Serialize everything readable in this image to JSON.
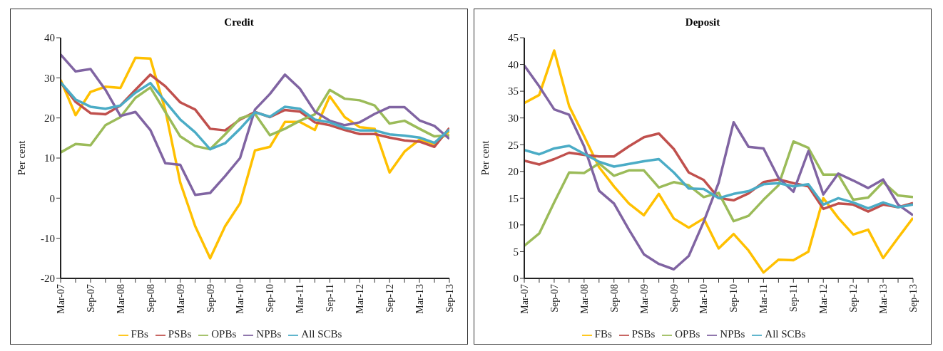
{
  "chart_data": [
    {
      "type": "line",
      "title": "Credit",
      "ylabel": "Per cent",
      "categories": [
        "Mar-07",
        null,
        "Sep-07",
        null,
        "Mar-08",
        null,
        "Sep-08",
        null,
        "Mar-09",
        null,
        "Sep-09",
        null,
        "Mar-10",
        null,
        "Sep-10",
        null,
        "Mar-11",
        null,
        "Sep-11",
        null,
        "Mar-12",
        null,
        "Sep-12",
        null,
        "Mar-13",
        null,
        "Sep-13"
      ],
      "series": [
        {
          "name": "FBs",
          "color": "#ffc000",
          "values": [
            29.5,
            20.7,
            26.5,
            27.8,
            27.5,
            35,
            34.8,
            22,
            3.9,
            -7,
            -15,
            -7,
            -1.3,
            11.9,
            12.8,
            19,
            19,
            17,
            25.4,
            20.2,
            17.7,
            17.3,
            6.4,
            11.6,
            14.6,
            13.5,
            16.7
          ]
        },
        {
          "name": "PSBs",
          "color": "#c0504d",
          "values": [
            28.9,
            24,
            21.2,
            20.9,
            23.1,
            27,
            30.8,
            27.9,
            23.9,
            22.1,
            17.3,
            16.9,
            19.6,
            21.5,
            20.2,
            22,
            21.6,
            18.9,
            18.2,
            17,
            16,
            16,
            15.1,
            14.4,
            14.1,
            12.8,
            17.5
          ]
        },
        {
          "name": "OPBs",
          "color": "#9bbb59",
          "values": [
            11.4,
            13.5,
            13.2,
            18.2,
            20.2,
            25,
            27.6,
            21.5,
            15.4,
            13,
            12.2,
            15.9,
            19.9,
            21,
            15.7,
            17.3,
            19.3,
            20.9,
            27,
            24.8,
            24.4,
            23.1,
            18.6,
            19.3,
            17.3,
            15.4,
            15.7
          ]
        },
        {
          "name": "NPBs",
          "color": "#8064a2",
          "values": [
            35.8,
            31.6,
            32.2,
            27,
            20.5,
            21.5,
            17,
            8.7,
            8.3,
            0.8,
            1.3,
            5.5,
            10,
            22.1,
            26,
            30.8,
            27.3,
            21.6,
            19.3,
            18.2,
            18.9,
            21,
            22.7,
            22.7,
            19.4,
            18,
            14.8
          ]
        },
        {
          "name": "All SCBs",
          "color": "#4bacc6",
          "values": [
            28.9,
            24.6,
            22.8,
            22.3,
            23.1,
            26.3,
            28.7,
            24.1,
            19.6,
            16.4,
            12.2,
            13.7,
            17.3,
            21.4,
            20.3,
            22.8,
            22.3,
            19.6,
            18.9,
            17.5,
            16.9,
            16.9,
            15.9,
            15.6,
            15.1,
            13.8,
            17.1
          ]
        }
      ],
      "ylim": [
        -20,
        40
      ],
      "yticks": [
        -20,
        -10,
        0,
        10,
        20,
        30,
        40
      ],
      "grid": false,
      "legend": "bottom",
      "marker": "none",
      "line_style": "solid"
    },
    {
      "type": "line",
      "title": "Deposit",
      "ylabel": "Per cent",
      "categories": [
        "Mar-07",
        null,
        "Sep-07",
        null,
        "Mar-08",
        null,
        "Sep-08",
        null,
        "Mar-09",
        null,
        "Sep-09",
        null,
        "Mar-10",
        null,
        "Sep-10",
        null,
        "Mar-11",
        null,
        "Sep-11",
        null,
        "Mar-12",
        null,
        "Sep-12",
        null,
        "Mar-13",
        null,
        "Sep-13"
      ],
      "series": [
        {
          "name": "FBs",
          "color": "#ffc000",
          "values": [
            32.8,
            34.3,
            42.6,
            32.2,
            26.6,
            20.8,
            17.2,
            14,
            11.8,
            15.8,
            11.2,
            9.5,
            11.2,
            5.6,
            8.3,
            5.2,
            1.1,
            3.5,
            3.4,
            5,
            15,
            11.3,
            8.2,
            9.1,
            3.8,
            7.6,
            11.3
          ]
        },
        {
          "name": "PSBs",
          "color": "#c0504d",
          "values": [
            22,
            21.3,
            22.3,
            23.5,
            23.1,
            22.8,
            22.8,
            24.7,
            26.4,
            27.1,
            24.2,
            19.8,
            18.4,
            15,
            14.6,
            15.9,
            18,
            18.5,
            17.8,
            17.2,
            13,
            14,
            13.8,
            12.5,
            13.8,
            13.3,
            14.1
          ]
        },
        {
          "name": "OPBs",
          "color": "#9bbb59",
          "values": [
            6.1,
            8.4,
            14.2,
            19.8,
            19.7,
            21.5,
            19.2,
            20.2,
            20.2,
            17,
            18,
            17.4,
            15.2,
            16,
            10.7,
            11.7,
            14.7,
            17.4,
            25.6,
            24.4,
            19.4,
            19.4,
            14.7,
            15.1,
            18,
            15.5,
            15.2
          ]
        },
        {
          "name": "NPBs",
          "color": "#8064a2",
          "values": [
            39.8,
            35.9,
            31.6,
            30.6,
            24.7,
            16.4,
            14,
            9.1,
            4.5,
            2.7,
            1.7,
            4.2,
            10.6,
            17.9,
            29.2,
            24.6,
            24.3,
            18.8,
            16.2,
            23.8,
            15.7,
            19.6,
            18.3,
            16.9,
            18.5,
            13.8,
            11.8
          ]
        },
        {
          "name": "All SCBs",
          "color": "#4bacc6",
          "values": [
            24,
            23.2,
            24.3,
            24.8,
            23.3,
            21.8,
            20.9,
            21.4,
            21.9,
            22.3,
            19.8,
            16.8,
            16.7,
            15,
            15.8,
            16.3,
            17.6,
            17.8,
            17.2,
            17.6,
            13.8,
            15,
            14.2,
            13.1,
            14.2,
            13.3,
            13.8
          ]
        }
      ],
      "ylim": [
        0,
        45
      ],
      "yticks": [
        0,
        5,
        10,
        15,
        20,
        25,
        30,
        35,
        40,
        45
      ],
      "grid": false,
      "legend": "bottom",
      "marker": "none",
      "line_style": "solid"
    }
  ]
}
